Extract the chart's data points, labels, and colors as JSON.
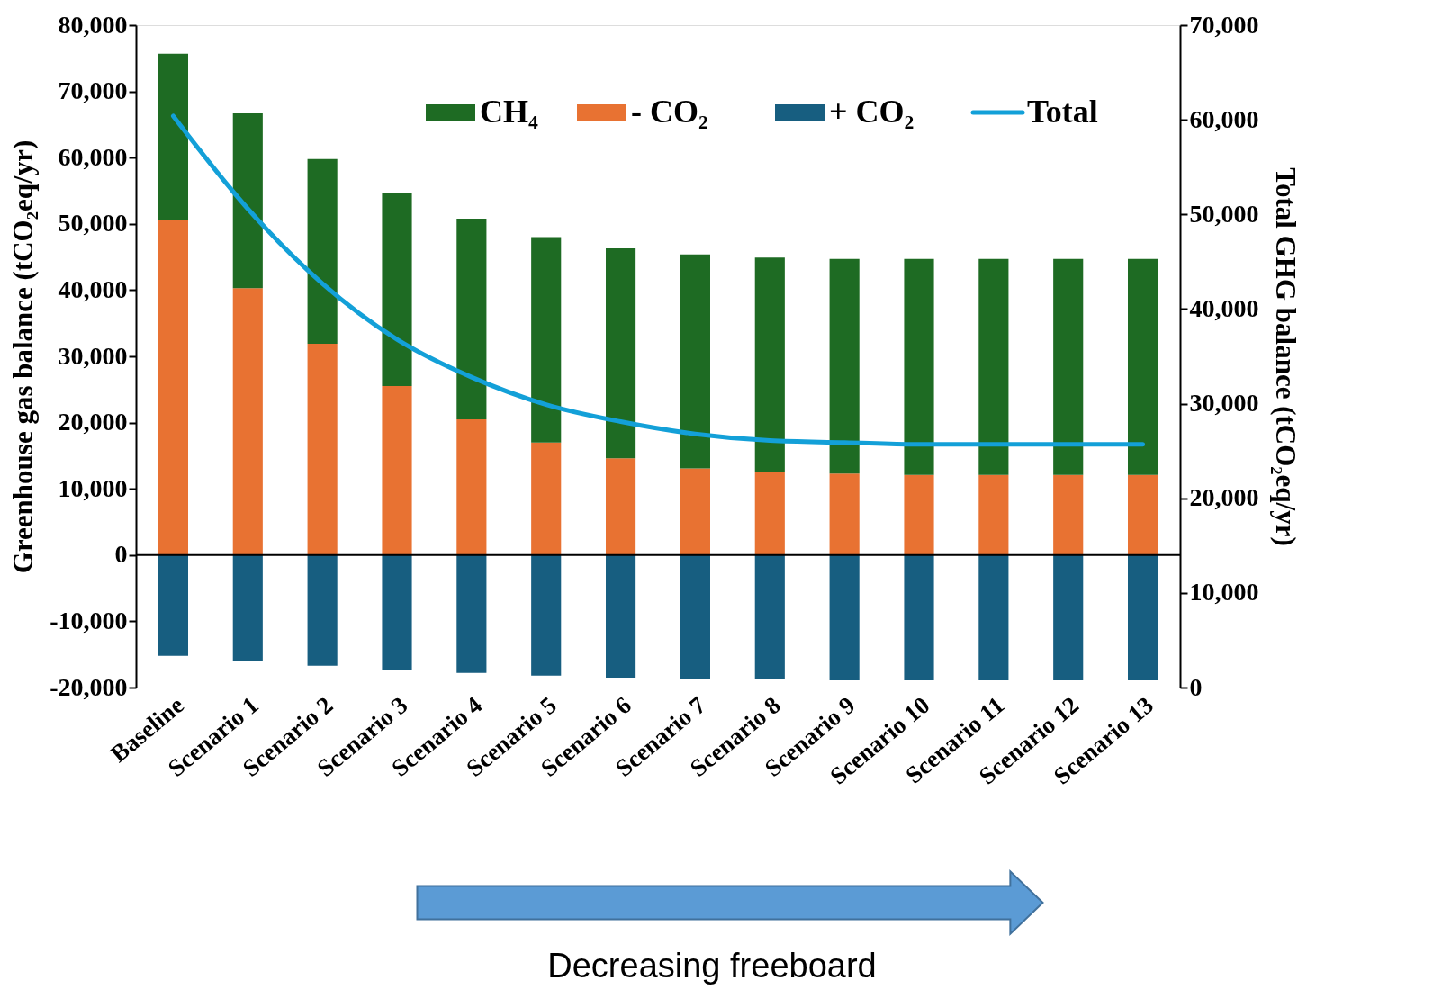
{
  "chart_data": {
    "type": "bar",
    "stacked": true,
    "legend": "top right",
    "grid": false,
    "ylabel": "Greenhouse gas balance (tCO₂eq/yr)",
    "y2label": "Total GHG balance (tCO₂eq/yr)",
    "categories": [
      "Baseline",
      "Scenario 1",
      "Scenario 2",
      "Scenario 3",
      "Scenario 4",
      "Scenario 5",
      "Scenario 6",
      "Scenario 7",
      "Scenario 8",
      "Scenario 9",
      "Scenario 10",
      "Scenario 11",
      "Scenario 12",
      "Scenario 13"
    ],
    "ylim": [
      -20000,
      80000
    ],
    "yticks": [
      {
        "value": -20000,
        "label": "-20,000"
      },
      {
        "value": -10000,
        "label": "-10,000"
      },
      0,
      {
        "value": 10000,
        "label": "10,000"
      },
      {
        "value": 20000,
        "label": "20,000"
      },
      {
        "value": 30000,
        "label": "30,000"
      },
      {
        "value": 40000,
        "label": "40,000"
      },
      {
        "value": 50000,
        "label": "50,000"
      },
      {
        "value": 60000,
        "label": "60,000"
      },
      {
        "value": 70000,
        "label": "70,000"
      },
      {
        "value": 80000,
        "label": "80,000"
      }
    ],
    "y2lim": [
      0,
      70000
    ],
    "y2ticks": [
      0,
      {
        "value": 10000,
        "label": "10,000"
      },
      {
        "value": 20000,
        "label": "20,000"
      },
      {
        "value": 30000,
        "label": "30,000"
      },
      {
        "value": 40000,
        "label": "40,000"
      },
      {
        "value": 50000,
        "label": "50,000"
      },
      {
        "value": 60000,
        "label": "60,000"
      },
      {
        "value": 70000,
        "label": "70,000"
      }
    ],
    "ref_lines": [
      {
        "axis": "y",
        "value": 0,
        "color": "#000000"
      }
    ],
    "series": [
      {
        "name": "- CO₂",
        "color": "#e87232",
        "values": [
          50600,
          40300,
          31900,
          25500,
          20500,
          17000,
          14600,
          13100,
          12600,
          12300,
          12100,
          12100,
          12100,
          12100
        ]
      },
      {
        "name": "CH₄",
        "color": "#1e6b23",
        "values": [
          25100,
          26400,
          27900,
          29100,
          30300,
          31000,
          31700,
          32300,
          32300,
          32400,
          32600,
          32600,
          32600,
          32600
        ]
      },
      {
        "name": "+ CO₂",
        "color": "#175e80",
        "values": [
          -15200,
          -16000,
          -16700,
          -17400,
          -17800,
          -18200,
          -18500,
          -18700,
          -18700,
          -18900,
          -18900,
          -18900,
          -18900,
          -18900
        ]
      },
      {
        "name": "Total",
        "type": "line",
        "axis": "y2",
        "color": "#13a0d8",
        "values": [
          60400,
          50600,
          42700,
          36800,
          32800,
          29900,
          28100,
          26800,
          26100,
          25900,
          25700,
          25700,
          25700,
          25700
        ]
      }
    ],
    "annotations": [
      "Decreasing freeboard"
    ]
  }
}
